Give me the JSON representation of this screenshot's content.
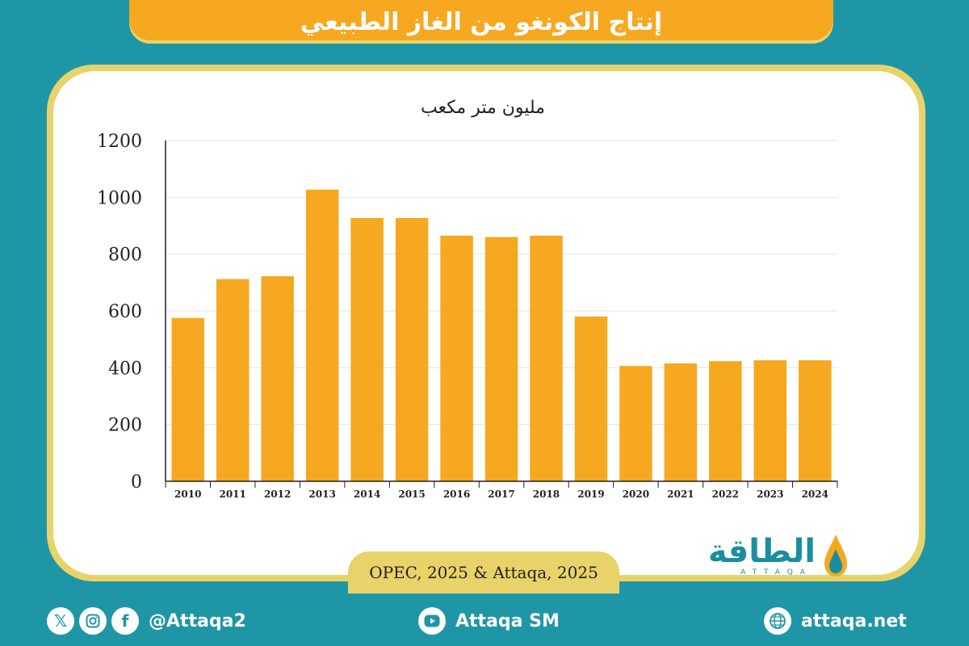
{
  "header": {
    "title": "إنتاج الكونغو من الغاز الطبيعي"
  },
  "chart_data": {
    "type": "bar",
    "title": "",
    "unit_label": "مليون متر مكعب",
    "xlabel": "",
    "ylabel": "",
    "ylim": [
      0,
      1200
    ],
    "yticks": [
      0,
      200,
      400,
      600,
      800,
      1000,
      1200
    ],
    "grid": true,
    "categories": [
      "2010",
      "2011",
      "2012",
      "2013",
      "2014",
      "2015",
      "2016",
      "2017",
      "2018",
      "2019",
      "2020",
      "2021",
      "2022",
      "2023",
      "2024"
    ],
    "series": [
      {
        "values": [
          575,
          712,
          722,
          1027,
          927,
          927,
          865,
          860,
          865,
          580,
          406,
          415,
          423,
          426,
          426
        ]
      }
    ],
    "bar_color": "#f6a821"
  },
  "source": {
    "text": "OPEC, 2025 & Attaqa, 2025"
  },
  "logo": {
    "name": "الطاقة",
    "latin": "ATTAQA"
  },
  "footer": {
    "social_handle": "@Attaqa2",
    "youtube": "Attaqa SM",
    "website": "attaqa.net"
  },
  "icons": [
    "x-icon",
    "instagram-icon",
    "facebook-icon",
    "youtube-icon",
    "globe-icon",
    "drop-icon"
  ],
  "colors": {
    "background": "#1f96a6",
    "accent": "#f6a821",
    "frame": "#e8d36a"
  }
}
